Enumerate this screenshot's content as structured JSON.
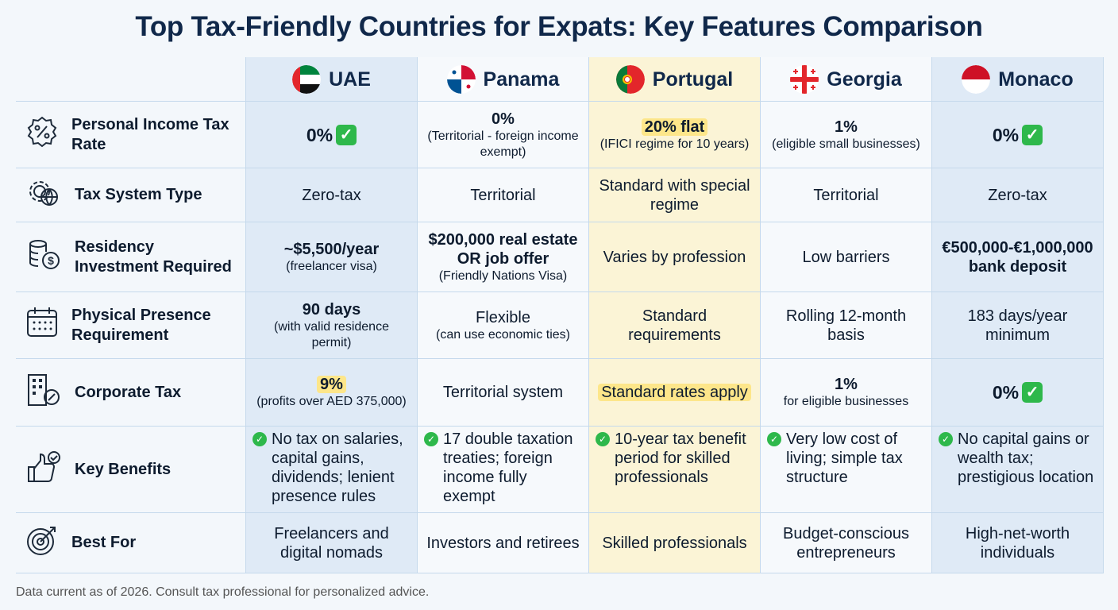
{
  "title": "Top Tax-Friendly Countries for Expats: Key Features Comparison",
  "countries": [
    {
      "key": "uae",
      "name": "UAE",
      "flag": "uae-flag"
    },
    {
      "key": "panama",
      "name": "Panama",
      "flag": "panama-flag"
    },
    {
      "key": "portugal",
      "name": "Portugal",
      "flag": "portugal-flag"
    },
    {
      "key": "georgia",
      "name": "Georgia",
      "flag": "georgia-flag"
    },
    {
      "key": "monaco",
      "name": "Monaco",
      "flag": "monaco-flag"
    }
  ],
  "colors": {
    "uae_col": "#dfeaf6",
    "monaco_col": "#dfeaf6",
    "portugal_col": "#fbf4d6",
    "highlight": "#fde68a",
    "check": "#2eb84b"
  },
  "rows": [
    {
      "label": "Personal Income Tax Rate",
      "icon": "percent-badge-icon",
      "cells": [
        {
          "main": "0%",
          "style": "big",
          "check": true
        },
        {
          "main": "0%",
          "style": "bold",
          "sub": "(Territorial - foreign income exempt)"
        },
        {
          "main": "20% flat",
          "style": "highlight",
          "sub": "(IFICI regime for 10 years)"
        },
        {
          "main": "1%",
          "style": "bold",
          "sub": "(eligible small businesses)"
        },
        {
          "main": "0%",
          "style": "big",
          "check": true
        }
      ]
    },
    {
      "label": "Tax System Type",
      "icon": "gear-globe-icon",
      "cells": [
        {
          "main": "Zero-tax"
        },
        {
          "main": "Territorial"
        },
        {
          "main": "Standard with special regime"
        },
        {
          "main": "Territorial"
        },
        {
          "main": "Zero-tax"
        }
      ]
    },
    {
      "label": "Residency Investment Required",
      "icon": "coins-dollar-icon",
      "cells": [
        {
          "main": "~$5,500/year",
          "style": "bold",
          "sub": "(freelancer visa)"
        },
        {
          "main": "$200,000 real estate OR job offer",
          "style": "bold",
          "sub": "(Friendly Nations Visa)"
        },
        {
          "main": "Varies by profession"
        },
        {
          "main": "Low barriers"
        },
        {
          "main": "€500,000-€1,000,000 bank deposit",
          "style": "bold"
        }
      ]
    },
    {
      "label": "Physical Presence Requirement",
      "icon": "calendar-icon",
      "cells": [
        {
          "main": "90 days",
          "style": "bold",
          "sub": "(with valid residence permit)"
        },
        {
          "main": "Flexible",
          "sub": "(can use economic ties)"
        },
        {
          "main": "Standard requirements"
        },
        {
          "main": "Rolling 12-month basis"
        },
        {
          "main": "183 days/year minimum"
        }
      ]
    },
    {
      "label": "Corporate Tax",
      "icon": "building-percent-icon",
      "cells": [
        {
          "main": "9%",
          "style": "highlight",
          "sub": "(profits over AED 375,000)"
        },
        {
          "main": "Territorial system"
        },
        {
          "main": "Standard rates apply",
          "style": "highlight-normal"
        },
        {
          "main": "1%",
          "style": "bold",
          "sub": "for eligible businesses"
        },
        {
          "main": "0%",
          "style": "big",
          "check": true
        }
      ]
    },
    {
      "label": "Key Benefits",
      "icon": "thumbs-up-check-icon",
      "cells": [
        {
          "main": "No tax on salaries, capital gains, dividends; lenient presence rules",
          "bullet": true
        },
        {
          "main": "17 double taxation treaties; foreign income fully exempt",
          "bullet": true
        },
        {
          "main": "10-year tax benefit period for skilled professionals",
          "bullet": true
        },
        {
          "main": "Very low cost of living; simple tax structure",
          "bullet": true
        },
        {
          "main": "No capital gains or wealth tax; prestigious location",
          "bullet": true
        }
      ]
    },
    {
      "label": "Best For",
      "icon": "target-icon",
      "cells": [
        {
          "main": "Freelancers and digital nomads"
        },
        {
          "main": "Investors and retirees"
        },
        {
          "main": "Skilled professionals"
        },
        {
          "main": "Budget-conscious entrepreneurs"
        },
        {
          "main": "High-net-worth individuals"
        }
      ]
    }
  ],
  "footer": "Data current as of 2026. Consult tax professional for personalized advice."
}
